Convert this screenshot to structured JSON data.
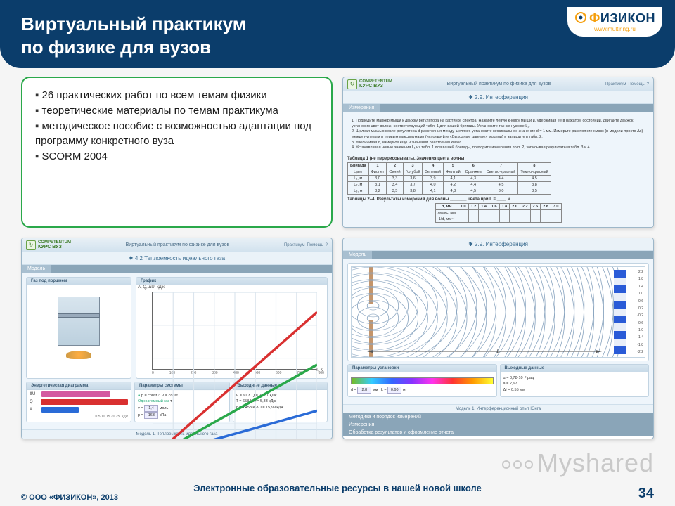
{
  "header": {
    "title_line1": "Виртуальный практикум",
    "title_line2": "по физике для вузов",
    "logo_main": "ФИЗИКОН",
    "logo_sub": "www.multiring.ru"
  },
  "bullets": [
    "26 практических работ по всем темам физики",
    "теоретические материалы по темам практикума",
    "методическое пособие с возможностью адаптации под программу конкретного вуза",
    "SCORM 2004"
  ],
  "shot_common": {
    "brand_top": "COMPETENTUM",
    "brand_main": "КУРС ВУЗ",
    "app_title": "Виртуальный практикум по физике для вузов",
    "help1": "Практикум",
    "help2": "Помощь"
  },
  "shot1": {
    "subtitle": "2.9. Интерференция",
    "tab": "Измерения",
    "instructions": [
      "Подведите маркер мыши к движку регулятора на картинке спектра. Нажмите левую кнопку мыши и, удерживая ее в нажатом состоянии, двигайте движок, установив цвет волны, соответствующий табл. 1 для вашей бригады. Установите так же нужное L₁.",
      "Щелкая мышью возле регулятора d расстояния между щелями, установите минимальное значение d = 1 мм. Измерьте расстояние xмакс (в модели просто Δx) между нулевым и первым максимумами (используйте «Выходные данные» модели) и запишите в табл. 2.",
      "Увеличивая d, измерьте еще 9 значений расстояния xмакс.",
      "Устанавливая новые значения L₁ из табл. 1 для вашей бригады, повторите измерения по п. 2, записывая результаты в табл. 3 и 4."
    ],
    "table1_caption": "Таблица 1 (не перерисовывать). Значения цвета волны",
    "table1": {
      "headers": [
        "Бригада",
        "1",
        "2",
        "3",
        "4",
        "5",
        "6",
        "7",
        "8"
      ],
      "rows": [
        [
          "Цвет",
          "Фиолет",
          "Синий",
          "Голубой",
          "Зеленый",
          "Желтый",
          "Оранжев",
          "Светло-красный",
          "Темно-красный"
        ],
        [
          "L₁, м",
          "3,0",
          "3,3",
          "3,6",
          "3,9",
          "4,1",
          "4,3",
          "4,4",
          "4,5"
        ],
        [
          "L₂, м",
          "3,1",
          "3,4",
          "3,7",
          "4,0",
          "4,2",
          "4,4",
          "4,5",
          "3,8"
        ],
        [
          "L₃, м",
          "3,2",
          "3,5",
          "3,8",
          "4,1",
          "4,3",
          "4,5",
          "3,0",
          "3,5"
        ]
      ]
    },
    "table2_caption": "Таблицы 2–4. Результаты измерений для волны _______ цвета при L = ____ м",
    "table2": {
      "headers": [
        "d, мм",
        "1.0",
        "1.2",
        "1.4",
        "1.6",
        "1.8",
        "2.0",
        "2.2",
        "2.5",
        "2.8",
        "3.0"
      ],
      "rows": [
        [
          "xмакс, мм",
          "",
          "",
          "",
          "",
          "",
          "",
          "",
          "",
          "",
          ""
        ],
        [
          "1/d, мм⁻¹",
          "",
          "",
          "",
          "",
          "",
          "",
          "",
          "",
          "",
          ""
        ]
      ]
    }
  },
  "shot2": {
    "subtitle": "4.2 Теплоемкость идеального газа",
    "tab_model": "Модель",
    "panel_gas": "Газ под поршнем",
    "panel_chart": "График",
    "chart_ylabel": "A, Q, ΔU, кДж",
    "chart_xlabel": "T, К",
    "xticks": [
      0,
      100,
      200,
      300,
      400,
      500,
      600,
      700,
      800
    ],
    "yticks": [
      0,
      5,
      10,
      15,
      20,
      25
    ],
    "series": [
      {
        "color": "#d93030",
        "points": [
          [
            0,
            0
          ],
          [
            800,
            22
          ]
        ]
      },
      {
        "color": "#2aa84a",
        "points": [
          [
            0,
            0
          ],
          [
            800,
            14
          ]
        ]
      },
      {
        "color": "#2a6bd7",
        "points": [
          [
            0,
            0
          ],
          [
            800,
            7
          ]
        ]
      }
    ],
    "panel_energy": "Энергетическая диаграмма",
    "bars": [
      {
        "label": "ΔU",
        "color": "#d45aa0",
        "value": 70
      },
      {
        "label": "Q",
        "color": "#d93030",
        "value": 95
      },
      {
        "label": "A",
        "color": "#2a6bd7",
        "value": 38
      }
    ],
    "bars_xlabel": "кДж",
    "bars_ticks": "0  5  10  15  20  25",
    "panel_params": "Параметры системы",
    "params_radio": [
      {
        "label": "p = const",
        "sel": true
      },
      {
        "label": "V = const",
        "sel": false
      }
    ],
    "params_gas_label": "Одноатомный газ",
    "param_nu": "ν =",
    "param_nu_val": "1,4",
    "param_nu_unit": "моль",
    "param_p": "p =",
    "param_p_val": "163",
    "param_p_unit": "кПа",
    "panel_output": "Выходные данные",
    "outputs": [
      "V = 61 л    Q = 21,31 кДж",
      "T = 658 К    A = 5,33 кДж",
      "ΔT = 458 К    ΔU = 15,99 кДж"
    ],
    "footer": "Модель 1. Теплоемкость идеального газа"
  },
  "shot3": {
    "subtitle": "2.9. Интерференция",
    "tab_model": "Модель",
    "scale": [
      "2,2",
      "1,8",
      "1,4",
      "1,0",
      "0,6",
      "0,2",
      "-0,2",
      "-0,6",
      "-1,0",
      "-1,4",
      "-1,8",
      "-2,2"
    ],
    "L_label": "L",
    "panel_params": "Параметры установки",
    "param_d": "d =",
    "param_d_val": "2,8",
    "param_d_unit": "мм",
    "param_L": "L =",
    "param_L_val": "0,60",
    "param_L_unit": "м",
    "panel_output": "Выходные данные",
    "outputs": [
      "α = 0,78·10⁻³ рад",
      "a = 2,67",
      "ΔI = 0,55 мм"
    ],
    "footer": "Модель 1. Интерференционный опыт Юнга",
    "extra_tabs": [
      "Методика и порядок измерений",
      "Измерения",
      "Обработка результатов и оформление отчета"
    ]
  },
  "footer": {
    "copyright": "© ООО «ФИЗИКОН», 2013",
    "center": "Электронные образовательные ресурсы в нашей новой школе",
    "page": "34"
  },
  "watermark": "Myshared"
}
